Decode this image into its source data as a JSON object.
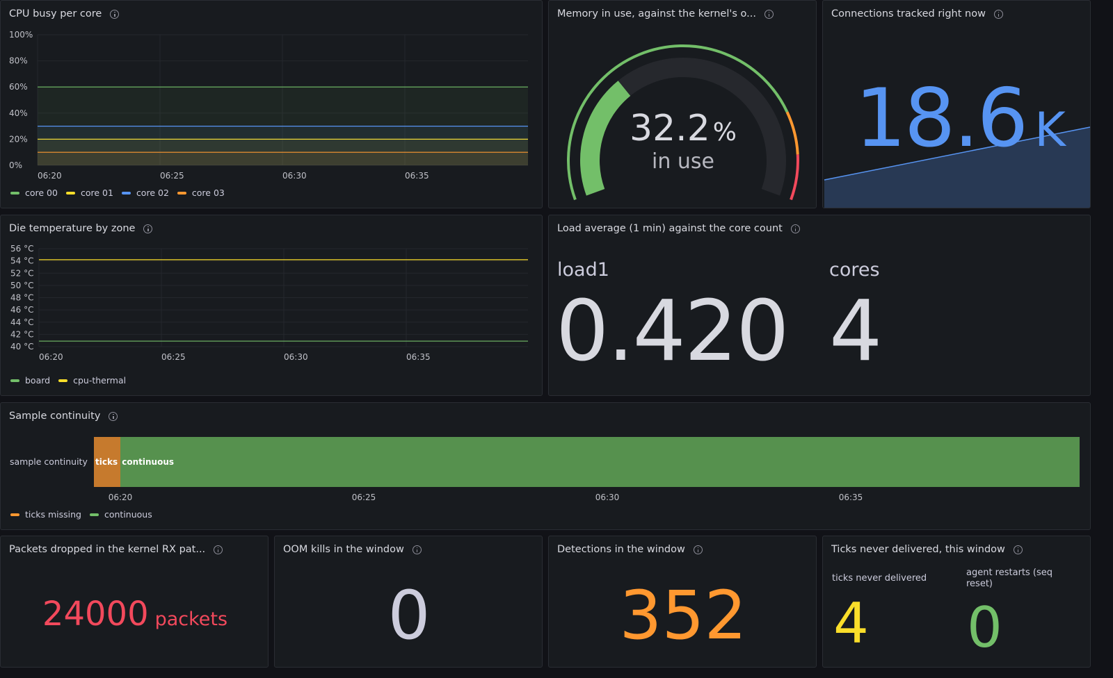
{
  "panels": {
    "cpu": {
      "title": "CPU busy per core",
      "chart_data": {
        "type": "line",
        "x": [
          "06:20",
          "06:40"
        ],
        "x_ticks": [
          "06:20",
          "06:25",
          "06:30",
          "06:35"
        ],
        "y_ticks": [
          "0%",
          "20%",
          "40%",
          "60%",
          "80%",
          "100%"
        ],
        "ylim": [
          0,
          100
        ],
        "series": [
          {
            "name": "core 00",
            "color": "#73bf69",
            "values": [
              60,
              60
            ]
          },
          {
            "name": "core 01",
            "color": "#fade2a",
            "values": [
              20,
              20
            ]
          },
          {
            "name": "core 02",
            "color": "#5794f2",
            "values": [
              30,
              30
            ]
          },
          {
            "name": "core 03",
            "color": "#ff9830",
            "values": [
              10,
              10
            ]
          }
        ],
        "legend": "bottom-left"
      }
    },
    "memory": {
      "title": "Memory in use, against the kernel's o...",
      "value": "32.2",
      "unit": "%",
      "sub": "in use",
      "fraction": 0.322,
      "thresholds": [
        "#73bf69",
        "#ff9830",
        "#f2495c"
      ]
    },
    "conn": {
      "title": "Connections tracked right now",
      "value": "18.6",
      "unit": "K",
      "color": "#5794f2"
    },
    "temp": {
      "title": "Die temperature by zone",
      "chart_data": {
        "type": "line",
        "x": [
          "06:20",
          "06:40"
        ],
        "x_ticks": [
          "06:20",
          "06:25",
          "06:30",
          "06:35"
        ],
        "y_ticks": [
          "40 °C",
          "42 °C",
          "44 °C",
          "46 °C",
          "48 °C",
          "50 °C",
          "52 °C",
          "54 °C",
          "56 °C"
        ],
        "ylim": [
          40,
          56
        ],
        "series": [
          {
            "name": "board",
            "color": "#73bf69",
            "values": [
              40.9,
              40.9
            ]
          },
          {
            "name": "cpu-thermal",
            "color": "#fade2a",
            "values": [
              54.2,
              54.2
            ]
          }
        ],
        "legend": "bottom-left"
      }
    },
    "load": {
      "title": "Load average (1 min) against the core count",
      "items": [
        {
          "label": "load1",
          "value": "0.420"
        },
        {
          "label": "cores",
          "value": "4"
        }
      ]
    },
    "continuity": {
      "title": "Sample continuity",
      "row_label": "sample continuity",
      "segments": [
        {
          "text": "ticks",
          "color": "#c67a2d",
          "fraction": 0.027
        },
        {
          "text": "continuous",
          "color": "#56914e",
          "fraction": 0.973
        }
      ],
      "x_ticks": [
        "06:20",
        "06:25",
        "06:30",
        "06:35"
      ],
      "legend": [
        {
          "name": "ticks missing",
          "color": "#ff9830"
        },
        {
          "name": "continuous",
          "color": "#73bf69"
        }
      ]
    },
    "packets": {
      "title": "Packets dropped in the kernel RX pat...",
      "value": "24000",
      "unit": "packets",
      "color": "#f2495c"
    },
    "oom": {
      "title": "OOM kills in the window",
      "value": "0",
      "color": "#ccccdc"
    },
    "detections": {
      "title": "Detections in the window",
      "value": "352",
      "color": "#ff9830"
    },
    "ticks": {
      "title": "Ticks never delivered, this window",
      "items": [
        {
          "label": "ticks never delivered",
          "value": "4",
          "color": "#fade2a"
        },
        {
          "label": "agent restarts (seq reset)",
          "value": "0",
          "color": "#73bf69"
        }
      ]
    }
  }
}
